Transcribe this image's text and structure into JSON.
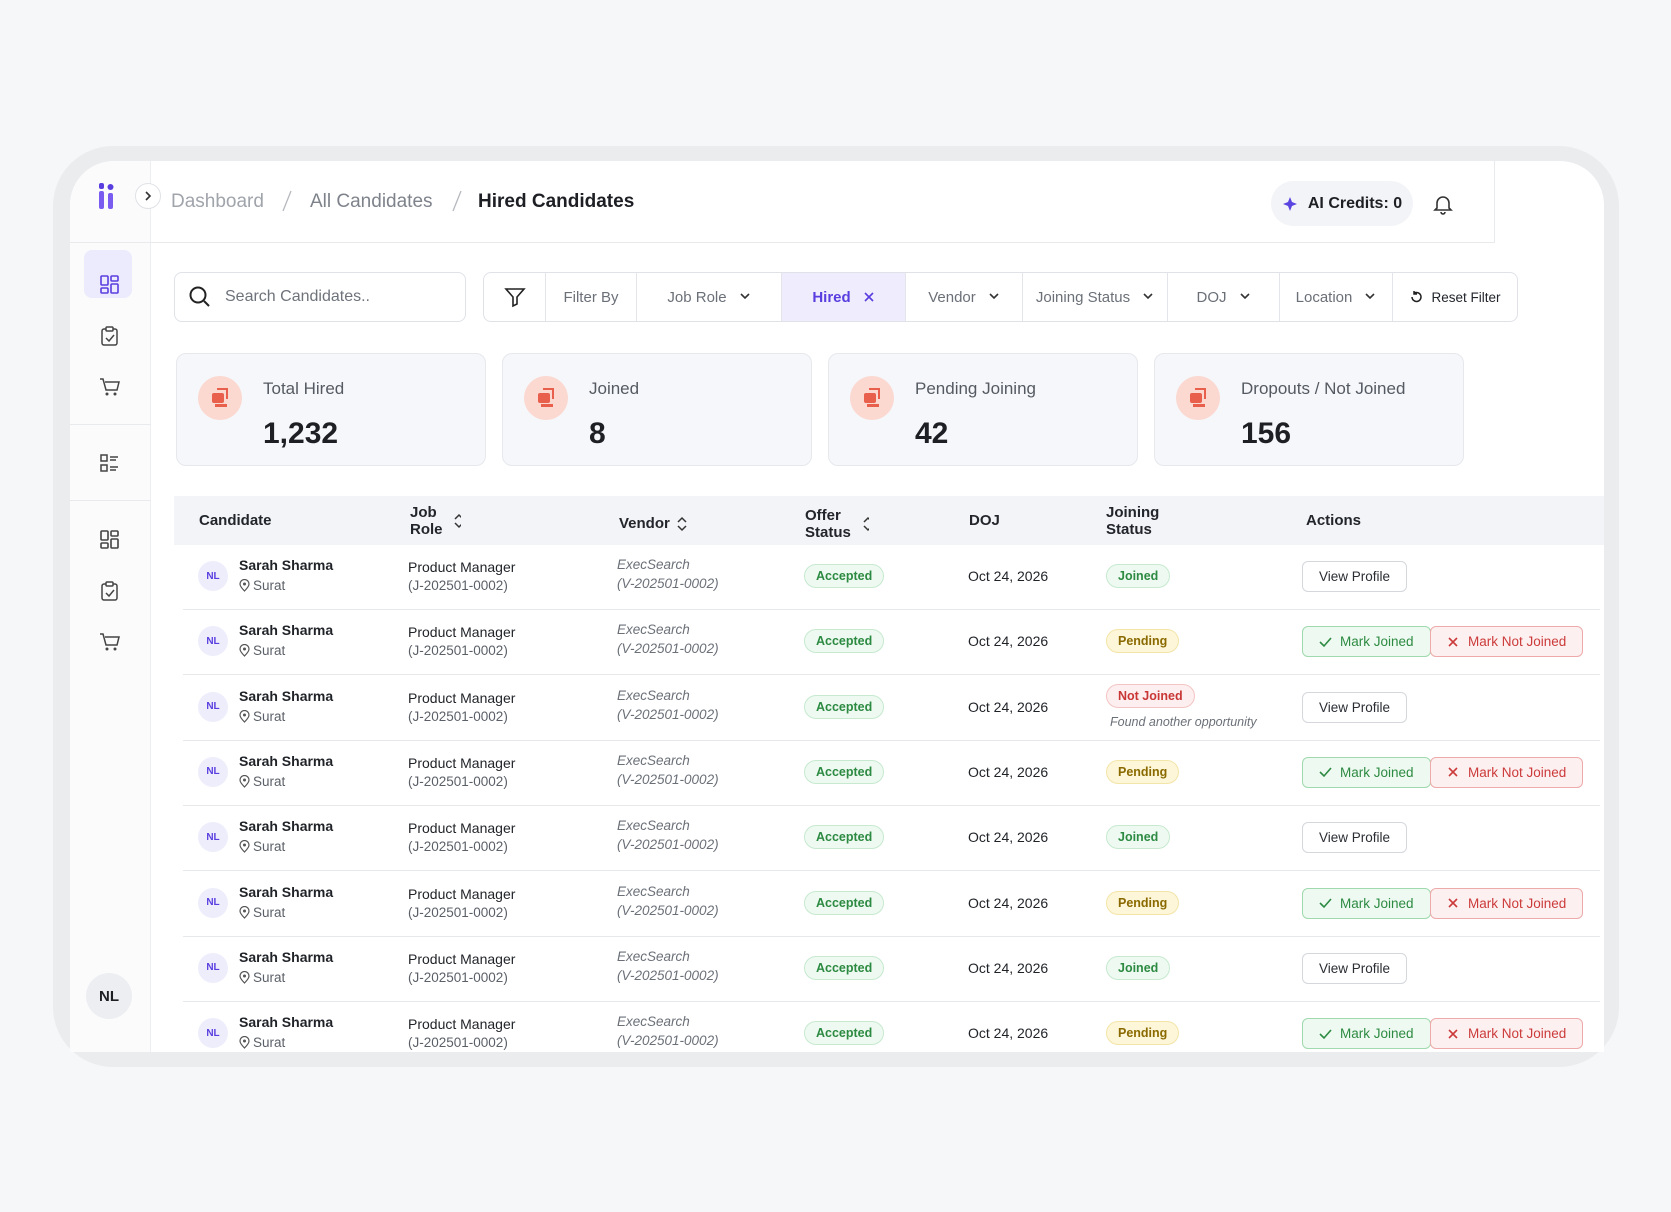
{
  "breadcrumb": [
    "Dashboard",
    "All Candidates",
    "Hired Candidates"
  ],
  "ai_credits": "AI Credits: 0",
  "user_initials": "NL",
  "search_placeholder": "Search Candidates..",
  "filters": {
    "label": "Filter By",
    "items": [
      {
        "label": "Job Role",
        "active": false
      },
      {
        "label": "Hired",
        "active": true
      },
      {
        "label": "Vendor",
        "active": false
      },
      {
        "label": "Joining Status",
        "active": false
      },
      {
        "label": "DOJ",
        "active": false
      },
      {
        "label": "Location",
        "active": false
      }
    ],
    "reset": "Reset Filter"
  },
  "stats": [
    {
      "label": "Total Hired",
      "value": "1,232"
    },
    {
      "label": "Joined",
      "value": "8"
    },
    {
      "label": "Pending Joining",
      "value": "42"
    },
    {
      "label": "Dropouts / Not Joined",
      "value": "156"
    }
  ],
  "table": {
    "columns": [
      {
        "label": "Candidate",
        "sortable": false
      },
      {
        "label": "Job Role",
        "sortable": true
      },
      {
        "label": "Vendor",
        "sortable": true
      },
      {
        "label": "Offer Status",
        "sortable": true
      },
      {
        "label": "DOJ",
        "sortable": false
      },
      {
        "label": "Joining Status",
        "sortable": false
      },
      {
        "label": "Actions",
        "sortable": false
      }
    ],
    "rows": [
      {
        "initials": "NL",
        "name": "Sarah Sharma",
        "location": "Surat",
        "job_role": "Product Manager",
        "job_id": "(J-202501-0002)",
        "vendor": "ExecSearch",
        "vendor_id": "(V-202501-0002)",
        "offer_status": "Accepted",
        "doj": "Oct 24, 2026",
        "joining_status": "Joined",
        "actions": [
          "View Profile"
        ]
      },
      {
        "initials": "NL",
        "name": "Sarah Sharma",
        "location": "Surat",
        "job_role": "Product Manager",
        "job_id": "(J-202501-0002)",
        "vendor": "ExecSearch",
        "vendor_id": "(V-202501-0002)",
        "offer_status": "Accepted",
        "doj": "Oct 24, 2026",
        "joining_status": "Pending",
        "actions": [
          "Mark Joined",
          "Mark Not Joined"
        ]
      },
      {
        "initials": "NL",
        "name": "Sarah Sharma",
        "location": "Surat",
        "job_role": "Product Manager",
        "job_id": "(J-202501-0002)",
        "vendor": "ExecSearch",
        "vendor_id": "(V-202501-0002)",
        "offer_status": "Accepted",
        "doj": "Oct 24, 2026",
        "joining_status": "Not Joined",
        "note": "Found another opportunity",
        "actions": [
          "View Profile"
        ]
      },
      {
        "initials": "NL",
        "name": "Sarah Sharma",
        "location": "Surat",
        "job_role": "Product Manager",
        "job_id": "(J-202501-0002)",
        "vendor": "ExecSearch",
        "vendor_id": "(V-202501-0002)",
        "offer_status": "Accepted",
        "doj": "Oct 24, 2026",
        "joining_status": "Pending",
        "actions": [
          "Mark Joined",
          "Mark Not Joined"
        ]
      },
      {
        "initials": "NL",
        "name": "Sarah Sharma",
        "location": "Surat",
        "job_role": "Product Manager",
        "job_id": "(J-202501-0002)",
        "vendor": "ExecSearch",
        "vendor_id": "(V-202501-0002)",
        "offer_status": "Accepted",
        "doj": "Oct 24, 2026",
        "joining_status": "Joined",
        "actions": [
          "View Profile"
        ]
      },
      {
        "initials": "NL",
        "name": "Sarah Sharma",
        "location": "Surat",
        "job_role": "Product Manager",
        "job_id": "(J-202501-0002)",
        "vendor": "ExecSearch",
        "vendor_id": "(V-202501-0002)",
        "offer_status": "Accepted",
        "doj": "Oct 24, 2026",
        "joining_status": "Pending",
        "actions": [
          "Mark Joined",
          "Mark Not Joined"
        ]
      },
      {
        "initials": "NL",
        "name": "Sarah Sharma",
        "location": "Surat",
        "job_role": "Product Manager",
        "job_id": "(J-202501-0002)",
        "vendor": "ExecSearch",
        "vendor_id": "(V-202501-0002)",
        "offer_status": "Accepted",
        "doj": "Oct 24, 2026",
        "joining_status": "Joined",
        "actions": [
          "View Profile"
        ]
      },
      {
        "initials": "NL",
        "name": "Sarah Sharma",
        "location": "Surat",
        "job_role": "Product Manager",
        "job_id": "(J-202501-0002)",
        "vendor": "ExecSearch",
        "vendor_id": "(V-202501-0002)",
        "offer_status": "Accepted",
        "doj": "Oct 24, 2026",
        "joining_status": "Pending",
        "actions": [
          "Mark Joined",
          "Mark Not Joined"
        ]
      }
    ]
  }
}
